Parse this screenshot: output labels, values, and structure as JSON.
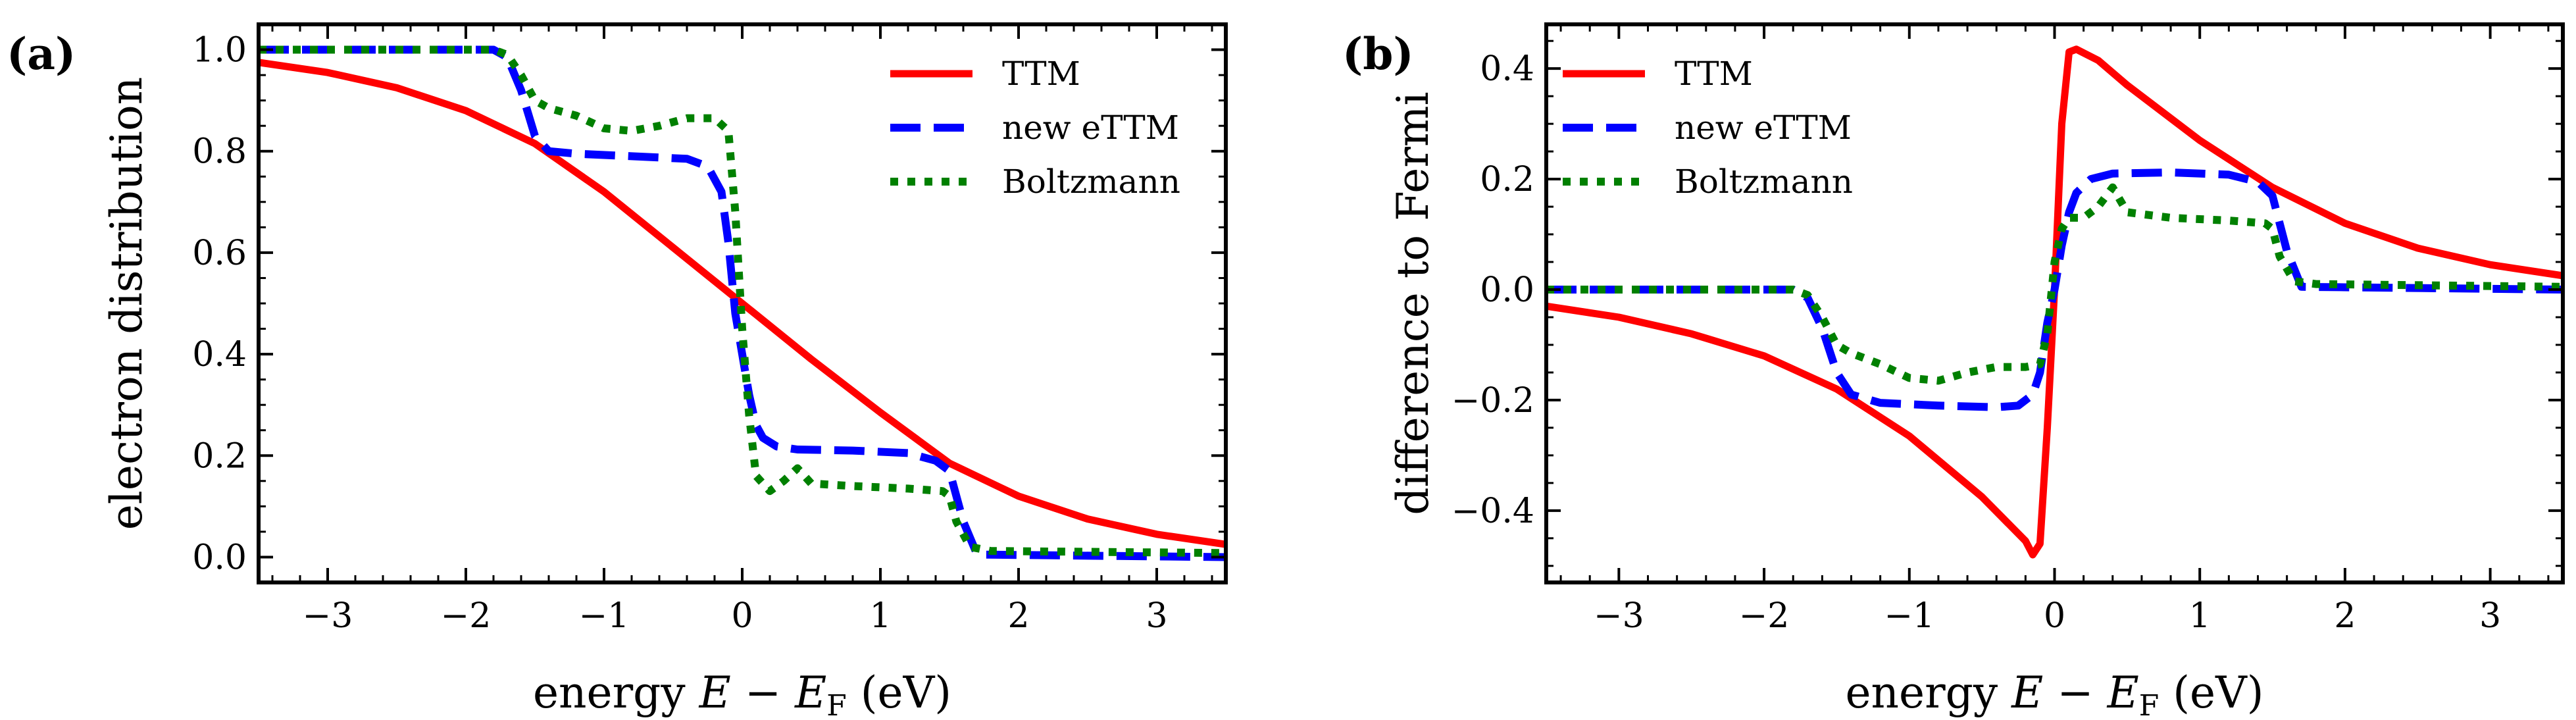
{
  "figure_title": "",
  "chart_data": [
    {
      "type": "line",
      "panel_label": "(a)",
      "title": "",
      "xlabel": "energy E − E_F (eV)",
      "xlabel_parts": {
        "prefix": "energy ",
        "var": "E",
        "minus": " − ",
        "var2": "E",
        "sub": "F",
        "suffix": " (eV)"
      },
      "ylabel": "electron distribution",
      "xlim": [
        -3.5,
        3.5
      ],
      "ylim": [
        -0.05,
        1.05
      ],
      "xticks": [
        -3,
        -2,
        -1,
        0,
        1,
        2,
        3
      ],
      "xtick_labels": [
        "−3",
        "−2",
        "−1",
        "0",
        "1",
        "2",
        "3"
      ],
      "yticks": [
        0.0,
        0.2,
        0.4,
        0.6,
        0.8,
        1.0
      ],
      "ytick_labels": [
        "0.0",
        "0.2",
        "0.4",
        "0.6",
        "0.8",
        "1.0"
      ],
      "legend_position": "top-right",
      "series": [
        {
          "name": "TTM",
          "color": "#ff0000",
          "style": "solid",
          "x": [
            -3.5,
            -3.0,
            -2.5,
            -2.0,
            -1.5,
            -1.0,
            -0.5,
            0.0,
            0.5,
            1.0,
            1.5,
            2.0,
            2.5,
            3.0,
            3.5
          ],
          "y": [
            0.975,
            0.955,
            0.925,
            0.88,
            0.815,
            0.72,
            0.61,
            0.5,
            0.39,
            0.285,
            0.185,
            0.12,
            0.075,
            0.045,
            0.025
          ]
        },
        {
          "name": "new eTTM",
          "color": "#0000ff",
          "style": "dashed",
          "x": [
            -3.5,
            -1.8,
            -1.7,
            -1.6,
            -1.5,
            -1.4,
            -1.2,
            -0.8,
            -0.4,
            -0.25,
            -0.15,
            -0.1,
            -0.05,
            0.0,
            0.05,
            0.1,
            0.15,
            0.25,
            0.4,
            0.8,
            1.2,
            1.4,
            1.5,
            1.6,
            1.7,
            3.5
          ],
          "y": [
            1.0,
            1.0,
            0.985,
            0.92,
            0.83,
            0.8,
            0.795,
            0.79,
            0.785,
            0.77,
            0.72,
            0.62,
            0.48,
            0.4,
            0.32,
            0.26,
            0.235,
            0.218,
            0.212,
            0.21,
            0.205,
            0.19,
            0.17,
            0.07,
            0.005,
            0.0
          ]
        },
        {
          "name": "Boltzmann",
          "color": "#008000",
          "style": "dotted",
          "x": [
            -3.5,
            -1.8,
            -1.7,
            -1.6,
            -1.5,
            -1.4,
            -1.2,
            -1.0,
            -0.8,
            -0.6,
            -0.4,
            -0.2,
            -0.1,
            -0.05,
            0.0,
            0.05,
            0.1,
            0.2,
            0.3,
            0.4,
            0.5,
            0.8,
            1.2,
            1.45,
            1.5,
            1.55,
            1.65,
            1.8,
            3.5
          ],
          "y": [
            1.0,
            1.0,
            0.99,
            0.95,
            0.9,
            0.885,
            0.87,
            0.845,
            0.84,
            0.85,
            0.865,
            0.865,
            0.84,
            0.68,
            0.45,
            0.28,
            0.16,
            0.13,
            0.15,
            0.175,
            0.145,
            0.14,
            0.135,
            0.13,
            0.12,
            0.07,
            0.02,
            0.012,
            0.008
          ]
        }
      ]
    },
    {
      "type": "line",
      "panel_label": "(b)",
      "title": "",
      "xlabel": "energy E − E_F (eV)",
      "xlabel_parts": {
        "prefix": "energy ",
        "var": "E",
        "minus": " − ",
        "var2": "E",
        "sub": "F",
        "suffix": " (eV)"
      },
      "ylabel": "difference to Fermi",
      "xlim": [
        -3.5,
        3.5
      ],
      "ylim": [
        -0.53,
        0.48
      ],
      "xticks": [
        -3,
        -2,
        -1,
        0,
        1,
        2,
        3
      ],
      "xtick_labels": [
        "−3",
        "−2",
        "−1",
        "0",
        "1",
        "2",
        "3"
      ],
      "yticks": [
        -0.4,
        -0.2,
        0.0,
        0.2,
        0.4
      ],
      "ytick_labels": [
        "−0.4",
        "−0.2",
        "0.0",
        "0.2",
        "0.4"
      ],
      "legend_position": "top-left",
      "series": [
        {
          "name": "TTM",
          "color": "#ff0000",
          "style": "solid",
          "x": [
            -3.5,
            -3.0,
            -2.5,
            -2.0,
            -1.5,
            -1.0,
            -0.5,
            -0.2,
            -0.15,
            -0.1,
            -0.05,
            0.0,
            0.05,
            0.1,
            0.15,
            0.3,
            0.5,
            1.0,
            1.5,
            2.0,
            2.5,
            3.0,
            3.5
          ],
          "y": [
            -0.03,
            -0.05,
            -0.08,
            -0.12,
            -0.18,
            -0.265,
            -0.375,
            -0.455,
            -0.48,
            -0.46,
            -0.25,
            0.0,
            0.3,
            0.43,
            0.435,
            0.415,
            0.37,
            0.27,
            0.185,
            0.12,
            0.075,
            0.045,
            0.025
          ]
        },
        {
          "name": "new eTTM",
          "color": "#0000ff",
          "style": "dashed",
          "x": [
            -3.5,
            -1.8,
            -1.7,
            -1.6,
            -1.5,
            -1.4,
            -1.2,
            -0.8,
            -0.4,
            -0.25,
            -0.15,
            -0.1,
            -0.05,
            0.0,
            0.05,
            0.1,
            0.15,
            0.25,
            0.4,
            0.8,
            1.2,
            1.4,
            1.5,
            1.6,
            1.7,
            3.5
          ],
          "y": [
            0.0,
            0.0,
            -0.015,
            -0.07,
            -0.15,
            -0.19,
            -0.205,
            -0.21,
            -0.213,
            -0.21,
            -0.19,
            -0.15,
            -0.06,
            0.0,
            0.08,
            0.14,
            0.175,
            0.2,
            0.21,
            0.212,
            0.208,
            0.195,
            0.17,
            0.07,
            0.005,
            0.0
          ]
        },
        {
          "name": "Boltzmann",
          "color": "#008000",
          "style": "dotted",
          "x": [
            -3.5,
            -1.8,
            -1.7,
            -1.6,
            -1.5,
            -1.4,
            -1.2,
            -1.0,
            -0.8,
            -0.6,
            -0.4,
            -0.2,
            -0.1,
            -0.05,
            0.0,
            0.05,
            0.1,
            0.2,
            0.3,
            0.4,
            0.5,
            0.8,
            1.2,
            1.45,
            1.5,
            1.55,
            1.65,
            1.8,
            3.5
          ],
          "y": [
            0.0,
            0.0,
            -0.01,
            -0.05,
            -0.1,
            -0.115,
            -0.135,
            -0.16,
            -0.165,
            -0.15,
            -0.14,
            -0.14,
            -0.135,
            -0.08,
            0.05,
            0.11,
            0.13,
            0.13,
            0.15,
            0.185,
            0.14,
            0.13,
            0.125,
            0.12,
            0.11,
            0.06,
            0.015,
            0.01,
            0.005
          ]
        }
      ]
    }
  ]
}
